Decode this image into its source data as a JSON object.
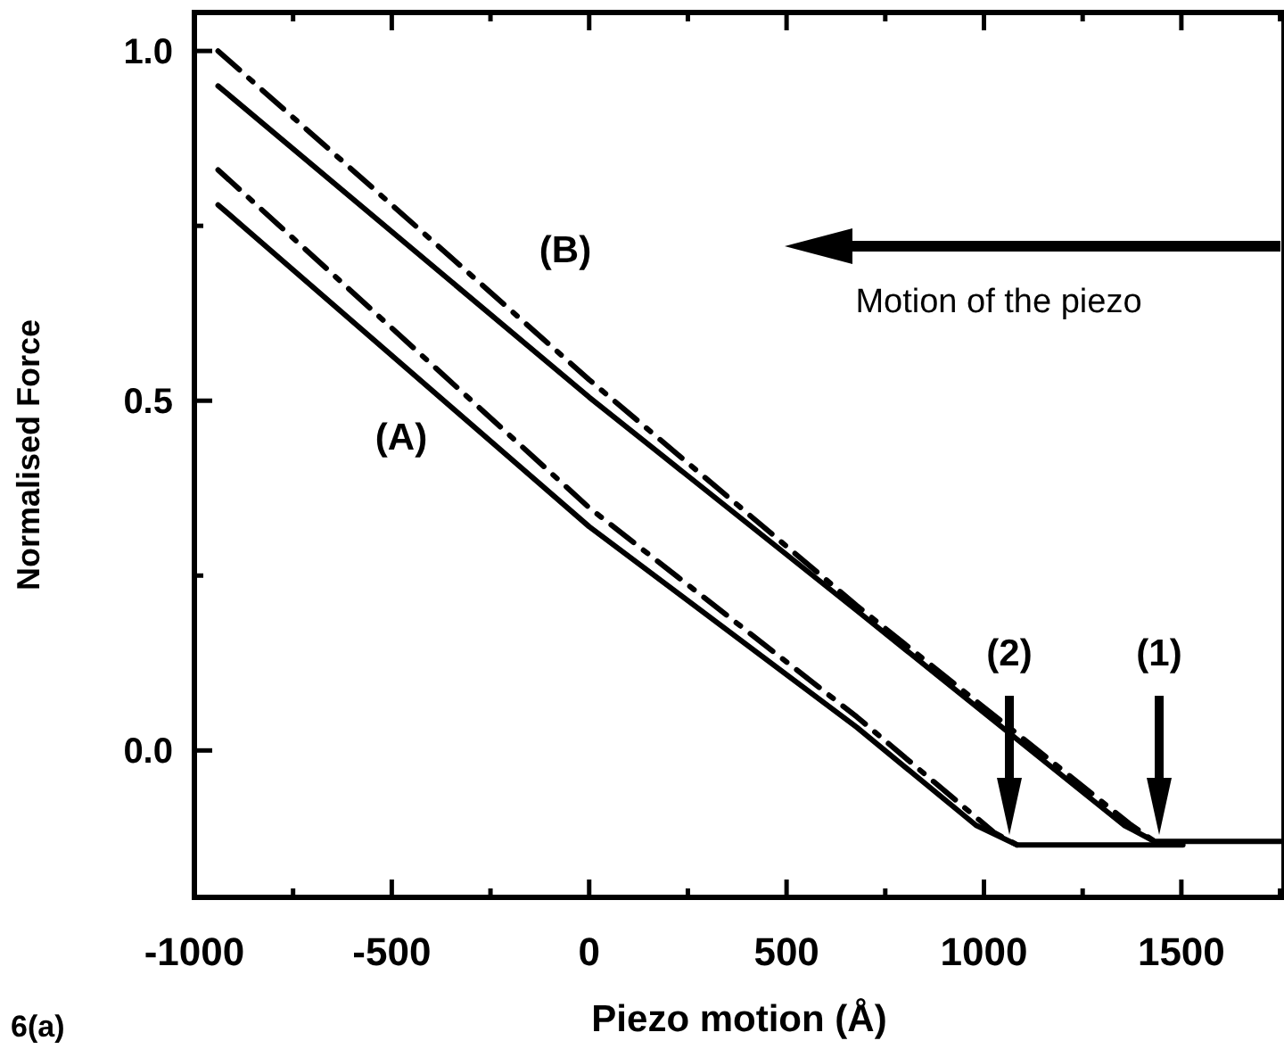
{
  "chart_data": {
    "type": "line",
    "xlabel": "Piezo motion (Å)",
    "ylabel": "Normalised Force",
    "xlim": [
      -1000,
      1760
    ],
    "ylim": [
      -0.21,
      1.055
    ],
    "xticks": [
      -1000,
      {
        "value": -750,
        "label": null
      },
      -500,
      {
        "value": -250,
        "label": null
      },
      0,
      {
        "value": 250,
        "label": null
      },
      500,
      {
        "value": 750,
        "label": null
      },
      1000,
      {
        "value": 1250,
        "label": null
      },
      1500,
      {
        "value": 1750,
        "label": null
      }
    ],
    "yticks": [
      {
        "value": 0,
        "label": "0.0"
      },
      {
        "value": 0.25,
        "label": null
      },
      0.5,
      {
        "value": 0.75,
        "label": null
      },
      {
        "value": 1,
        "label": "1.0"
      }
    ],
    "grid": false,
    "series": [
      {
        "color": "#000000",
        "line_style": "solid",
        "x": [
          -940,
          0,
          678,
          1355,
          1432,
          1760
        ],
        "values": [
          0.95,
          0.505,
          0.2,
          -0.107,
          -0.13,
          -0.13
        ]
      },
      {
        "color": "#000000",
        "line_style": "dashed",
        "x": [
          -940,
          0,
          678,
          1369,
          1432
        ],
        "values": [
          1.0,
          0.53,
          0.207,
          -0.105,
          -0.13
        ]
      },
      {
        "color": "#000000",
        "line_style": "solid",
        "x": [
          -940,
          0,
          678,
          980,
          1084,
          1504
        ],
        "values": [
          0.78,
          0.32,
          0.033,
          -0.107,
          -0.135,
          -0.135
        ]
      },
      {
        "color": "#000000",
        "line_style": "dashed",
        "x": [
          -940,
          0,
          678,
          1025,
          1084
        ],
        "values": [
          0.83,
          0.347,
          0.048,
          -0.117,
          -0.135
        ]
      }
    ],
    "annotations": [
      "(B)",
      "(A)",
      "(2)",
      "(1)",
      "Motion of the piezo",
      "6(a)"
    ]
  }
}
